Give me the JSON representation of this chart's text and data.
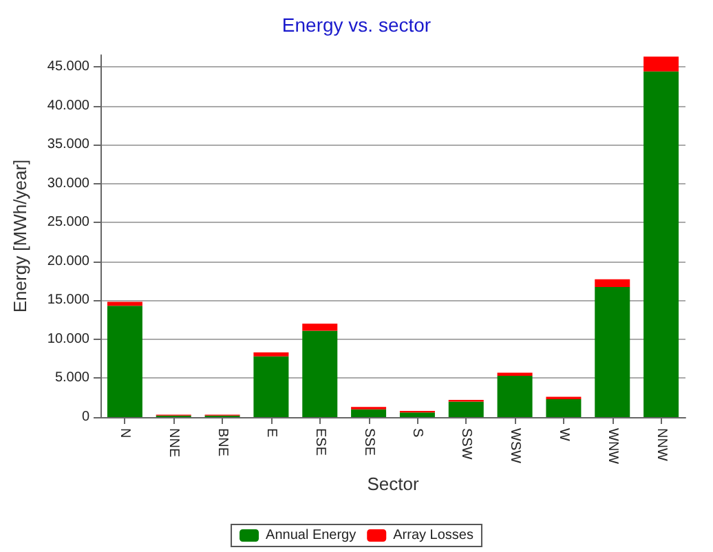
{
  "chart_data": {
    "type": "bar",
    "title": "Energy vs. sector",
    "xlabel": "Sector",
    "ylabel": "Energy [MWh/year]",
    "categories": [
      "N",
      "NNE",
      "BNE",
      "E",
      "ESE",
      "SSE",
      "S",
      "SSW",
      "WSW",
      "W",
      "WNW",
      "NNW"
    ],
    "stacked": true,
    "series": [
      {
        "name": "Annual Energy",
        "color": "#008000",
        "values": [
          14300,
          200,
          200,
          7800,
          11100,
          1000,
          600,
          2000,
          5300,
          2300,
          16700,
          44400
        ]
      },
      {
        "name": "Array Losses",
        "color": "#ff0000",
        "values": [
          500,
          100,
          100,
          500,
          900,
          300,
          200,
          200,
          400,
          300,
          1000,
          1900
        ]
      }
    ],
    "ylim": [
      0,
      46500
    ],
    "yticks": [
      {
        "value": 0,
        "label": "0"
      },
      {
        "value": 5000,
        "label": "5.000"
      },
      {
        "value": 10000,
        "label": "10.000"
      },
      {
        "value": 15000,
        "label": "15.000"
      },
      {
        "value": 20000,
        "label": "20.000"
      },
      {
        "value": 25000,
        "label": "25.000"
      },
      {
        "value": 30000,
        "label": "30.000"
      },
      {
        "value": 35000,
        "label": "35.000"
      },
      {
        "value": 40000,
        "label": "40.000"
      },
      {
        "value": 45000,
        "label": "45.000"
      }
    ],
    "grid": "y",
    "legend": "bottom"
  }
}
